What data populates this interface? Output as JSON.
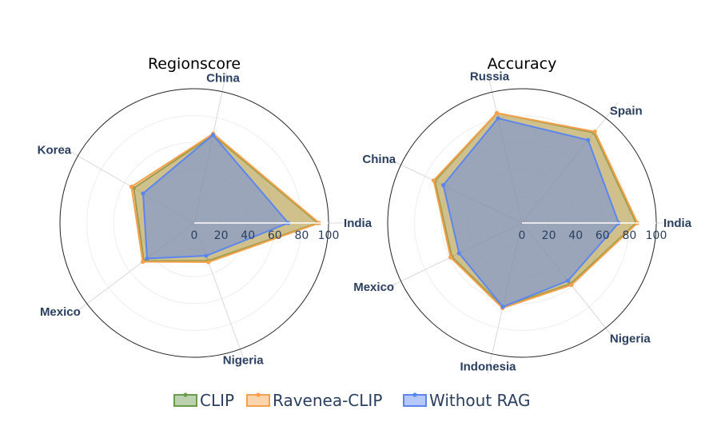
{
  "chart_data": [
    {
      "type": "radar",
      "title": "Regionscore",
      "categories": [
        "India",
        "China",
        "Korea",
        "Mexico",
        "Nigeria"
      ],
      "radial_range": [
        0,
        100
      ],
      "radial_ticks": [
        "0",
        "20",
        "40",
        "60",
        "80",
        "100"
      ],
      "series": [
        {
          "name": "CLIP",
          "values": [
            92,
            67,
            52,
            47,
            30
          ]
        },
        {
          "name": "Ravenea-CLIP",
          "values": [
            93,
            68,
            54,
            48,
            31
          ]
        },
        {
          "name": "Without RAG",
          "values": [
            70,
            67,
            44,
            44,
            26
          ]
        }
      ]
    },
    {
      "type": "radar",
      "title": "Accuracy",
      "categories": [
        "India",
        "Spain",
        "Russia",
        "China",
        "Mexico",
        "Indonesia",
        "Nigeria"
      ],
      "radial_range": [
        0,
        100
      ],
      "radial_ticks": [
        "0",
        "20",
        "40",
        "60",
        "80",
        "100"
      ],
      "series": [
        {
          "name": "CLIP",
          "values": [
            85,
            86,
            84,
            72,
            58,
            64,
            58
          ]
        },
        {
          "name": "Ravenea-CLIP",
          "values": [
            86,
            87,
            84,
            73,
            59,
            65,
            59
          ]
        },
        {
          "name": "Without RAG",
          "values": [
            72,
            79,
            80,
            65,
            52,
            64,
            55
          ]
        }
      ]
    }
  ],
  "legend": [
    {
      "name": "CLIP",
      "color": "#6b9c4e"
    },
    {
      "name": "Ravenea-CLIP",
      "color": "#f5a04a"
    },
    {
      "name": "Without RAG",
      "color": "#5a86f0"
    }
  ]
}
